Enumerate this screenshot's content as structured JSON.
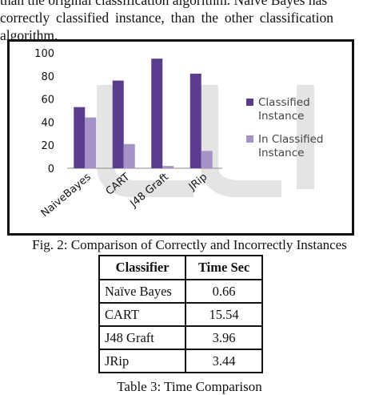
{
  "paragraph": {
    "line0": "than the original classification algorithm. Naive Bayes has",
    "line1": "correctly classified instance, than the other classification",
    "line2": "algorithm."
  },
  "figure_caption": "Fig. 2: Comparison of Correctly and Incorrectly Instances",
  "table": {
    "headers": [
      "Classifier",
      "Time Sec"
    ],
    "rows": [
      [
        "Naïve Bayes",
        "0.66"
      ],
      [
        "CART",
        "15.54"
      ],
      [
        "J48 Graft",
        "3.96"
      ],
      [
        "JRip",
        "3.44"
      ]
    ],
    "caption": "Table 3: Time Comparison"
  },
  "chart_data": {
    "type": "bar",
    "categories": [
      "NaiveBayes",
      "CART",
      "J48 Graft",
      "JRip"
    ],
    "series": [
      {
        "name": "Classified Instance",
        "values": [
          53,
          76,
          95,
          82
        ],
        "color": "#5b3d8e"
      },
      {
        "name": "In Classified Instance",
        "values": [
          44,
          21,
          2,
          15
        ],
        "color": "#a593c8"
      }
    ],
    "yticks": [
      0,
      20,
      40,
      60,
      80,
      100
    ],
    "ylim": [
      0,
      100
    ],
    "grid": false,
    "legend_position": "right"
  }
}
